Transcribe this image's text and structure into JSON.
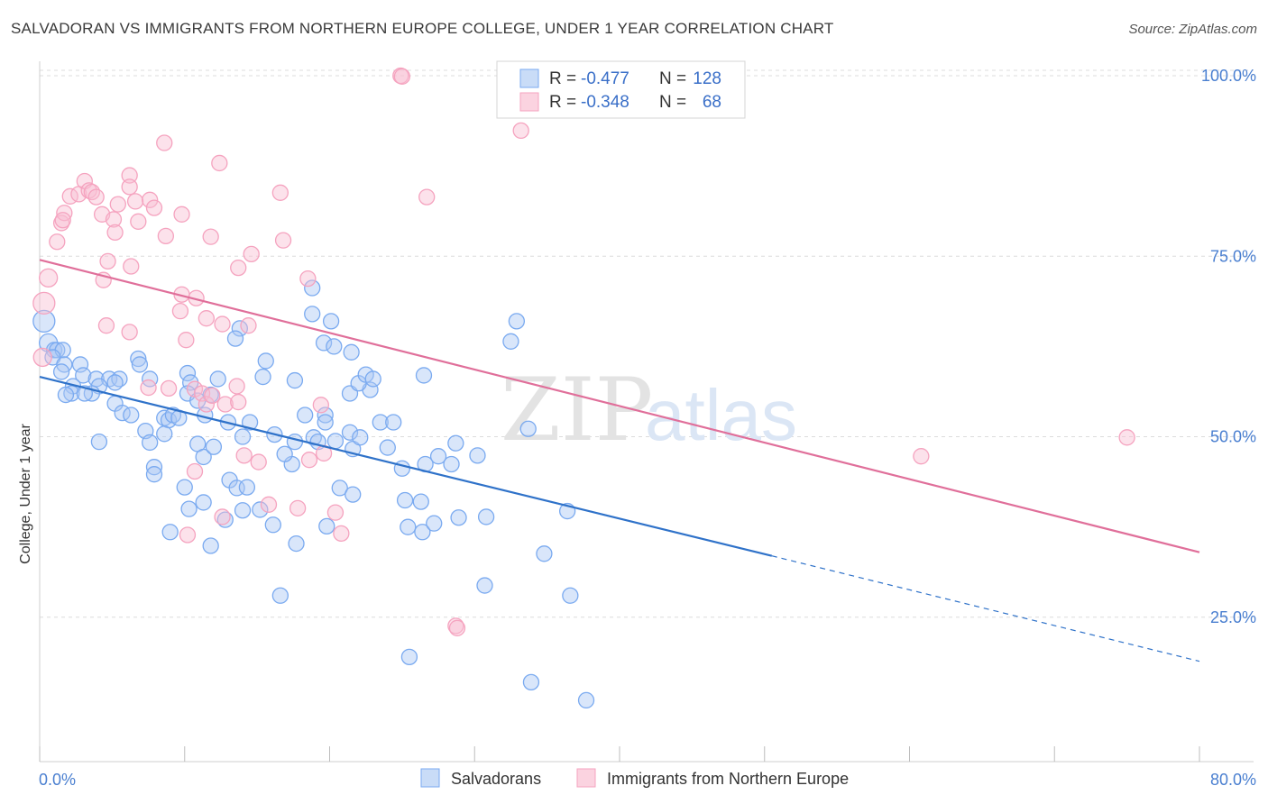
{
  "title": "SALVADORAN VS IMMIGRANTS FROM NORTHERN EUROPE COLLEGE, UNDER 1 YEAR CORRELATION CHART",
  "source": "Source: ZipAtlas.com",
  "watermark": {
    "zip": "ZIP",
    "atlas": "atlas"
  },
  "chart_data": {
    "type": "scatter",
    "xlabel": "",
    "ylabel": "College, Under 1 year",
    "xlim": [
      0,
      80
    ],
    "ylim": [
      5,
      102
    ],
    "x_tick_labels": [
      "0.0%",
      "80.0%"
    ],
    "y_ticks": [
      25,
      50,
      75,
      100
    ],
    "y_tick_labels": [
      "25.0%",
      "50.0%",
      "75.0%",
      "100.0%"
    ],
    "grid": true,
    "legend_position": "top-center",
    "legend": [
      {
        "r_label": "R = ",
        "r_value": "-0.477",
        "n_label": "N = ",
        "n_value": "128",
        "color": "#7aaaf0"
      },
      {
        "r_label": "R = ",
        "r_value": "-0.348",
        "n_label": "N = ",
        "n_value": "68",
        "color": "#f5a3bf"
      }
    ],
    "series": [
      {
        "name": "Salvadorans",
        "color": "#7aaaf0",
        "line_color": "#2f72c9",
        "trend": {
          "x0": 0,
          "y0": 58.3,
          "x1": 50.5,
          "y1": 33.5,
          "x_dash_end": 80,
          "y_dash_end": 18.9
        },
        "points": [
          [
            0.3,
            66
          ],
          [
            0.6,
            63
          ],
          [
            1,
            62
          ],
          [
            1.2,
            62
          ],
          [
            1.6,
            62
          ],
          [
            0.9,
            61
          ],
          [
            1.7,
            60
          ],
          [
            2.8,
            60
          ],
          [
            1.5,
            59
          ],
          [
            3,
            58.5
          ],
          [
            3.9,
            58
          ],
          [
            4.8,
            58
          ],
          [
            5.5,
            58
          ],
          [
            2.3,
            57
          ],
          [
            4.1,
            57
          ],
          [
            5.2,
            57.5
          ],
          [
            3.6,
            56
          ],
          [
            2.2,
            56
          ],
          [
            3.1,
            56
          ],
          [
            1.8,
            55.8
          ],
          [
            6.8,
            60.8
          ],
          [
            6.9,
            60
          ],
          [
            7.6,
            58
          ],
          [
            5.2,
            54.6
          ],
          [
            5.7,
            53.3
          ],
          [
            6.3,
            53
          ],
          [
            8.6,
            52.6
          ],
          [
            8.9,
            52.3
          ],
          [
            9.2,
            53
          ],
          [
            9.6,
            52.6
          ],
          [
            10.2,
            58.8
          ],
          [
            10.4,
            57.5
          ],
          [
            10.2,
            56
          ],
          [
            10.9,
            55
          ],
          [
            11.8,
            55.8
          ],
          [
            12.3,
            58
          ],
          [
            11.4,
            53
          ],
          [
            13,
            52
          ],
          [
            14,
            50
          ],
          [
            14.5,
            52
          ],
          [
            13.8,
            65
          ],
          [
            13.5,
            63.6
          ],
          [
            15.4,
            58.3
          ],
          [
            15.6,
            60.5
          ],
          [
            17.6,
            57.8
          ],
          [
            18.3,
            53
          ],
          [
            19.7,
            53
          ],
          [
            18.9,
            49.9
          ],
          [
            17.4,
            46.2
          ],
          [
            19.7,
            52
          ],
          [
            20.4,
            49.4
          ],
          [
            21.4,
            56
          ],
          [
            22.8,
            56.5
          ],
          [
            20.1,
            66
          ],
          [
            19.6,
            63
          ],
          [
            18.8,
            70.6
          ],
          [
            18.8,
            67
          ],
          [
            20.3,
            62.5
          ],
          [
            21.5,
            61.7
          ],
          [
            22,
            57.4
          ],
          [
            22.5,
            58.6
          ],
          [
            23,
            58
          ],
          [
            23.5,
            52
          ],
          [
            24,
            48.5
          ],
          [
            25,
            45.6
          ],
          [
            4.1,
            49.3
          ],
          [
            7.3,
            50.8
          ],
          [
            7.6,
            49.2
          ],
          [
            8.6,
            50.4
          ],
          [
            7.9,
            45.8
          ],
          [
            7.9,
            44.8
          ],
          [
            10.9,
            49
          ],
          [
            11.3,
            47.2
          ],
          [
            12,
            48.6
          ],
          [
            13.1,
            44
          ],
          [
            13.6,
            42.9
          ],
          [
            14.3,
            43
          ],
          [
            16.2,
            50.3
          ],
          [
            16.9,
            47.6
          ],
          [
            17.6,
            49.3
          ],
          [
            19.2,
            49.3
          ],
          [
            21.4,
            50.6
          ],
          [
            21.6,
            48.3
          ],
          [
            22.1,
            49.9
          ],
          [
            26.5,
            58.5
          ],
          [
            24.4,
            52
          ],
          [
            26.6,
            46.2
          ],
          [
            27.5,
            47.3
          ],
          [
            28.7,
            49.1
          ],
          [
            32.9,
            66
          ],
          [
            32.5,
            63.2
          ],
          [
            33.7,
            51.1
          ],
          [
            10,
            43
          ],
          [
            10.3,
            40
          ],
          [
            11.3,
            40.9
          ],
          [
            12.8,
            38.5
          ],
          [
            14,
            39.8
          ],
          [
            15.2,
            39.9
          ],
          [
            16.1,
            37.8
          ],
          [
            17.7,
            35.2
          ],
          [
            19.8,
            37.6
          ],
          [
            20.7,
            42.9
          ],
          [
            21.6,
            42
          ],
          [
            25.2,
            41.2
          ],
          [
            25.4,
            37.5
          ],
          [
            26.3,
            41
          ],
          [
            26.4,
            36.8
          ],
          [
            27.2,
            38
          ],
          [
            28.9,
            38.8
          ],
          [
            9,
            36.8
          ],
          [
            11.8,
            34.9
          ],
          [
            30.8,
            38.9
          ],
          [
            28.4,
            46.2
          ],
          [
            30.2,
            47.4
          ],
          [
            36.4,
            39.7
          ],
          [
            34.8,
            33.8
          ],
          [
            30.7,
            29.4
          ],
          [
            36.6,
            28
          ],
          [
            16.6,
            28
          ],
          [
            25.5,
            19.5
          ],
          [
            33.9,
            16
          ],
          [
            37.7,
            13.5
          ]
        ]
      },
      {
        "name": "Immigrants from Northern Europe",
        "color": "#f5a3bf",
        "line_color": "#e06f9a",
        "trend": {
          "x0": 0,
          "y0": 74.5,
          "x1": 80,
          "y1": 34
        },
        "points": [
          [
            0.3,
            68.5
          ],
          [
            0.6,
            72
          ],
          [
            0.2,
            61
          ],
          [
            1.2,
            77
          ],
          [
            1.5,
            79.6
          ],
          [
            1.7,
            81
          ],
          [
            1.6,
            80
          ],
          [
            2.1,
            83.3
          ],
          [
            2.7,
            83.6
          ],
          [
            3.1,
            85.4
          ],
          [
            3.4,
            84.1
          ],
          [
            3.6,
            83.9
          ],
          [
            3.9,
            83.2
          ],
          [
            4.3,
            80.8
          ],
          [
            5.1,
            80.1
          ],
          [
            5.2,
            78.3
          ],
          [
            4.7,
            74.3
          ],
          [
            4.4,
            71.7
          ],
          [
            6.2,
            86.2
          ],
          [
            6.2,
            84.6
          ],
          [
            6.6,
            82.6
          ],
          [
            6.8,
            79.8
          ],
          [
            7.6,
            82.8
          ],
          [
            7.9,
            81.7
          ],
          [
            8.6,
            90.7
          ],
          [
            8.7,
            77.8
          ],
          [
            9.8,
            80.8
          ],
          [
            6.3,
            73.6
          ],
          [
            9.8,
            69.7
          ],
          [
            9.7,
            67.4
          ],
          [
            10.8,
            69.2
          ],
          [
            11.8,
            77.7
          ],
          [
            12.4,
            87.9
          ],
          [
            13.7,
            73.4
          ],
          [
            14.6,
            75.3
          ],
          [
            14.4,
            65.4
          ],
          [
            11.5,
            66.4
          ],
          [
            10.1,
            63.4
          ],
          [
            10.7,
            56.6
          ],
          [
            11.2,
            56
          ],
          [
            11.5,
            54.5
          ],
          [
            11.9,
            55.7
          ],
          [
            12.8,
            54.5
          ],
          [
            12.6,
            65.6
          ],
          [
            13.6,
            57
          ],
          [
            14.1,
            47.4
          ],
          [
            10.7,
            45.2
          ],
          [
            12.6,
            38.9
          ],
          [
            13.7,
            54.8
          ],
          [
            15.1,
            46.5
          ],
          [
            15.8,
            40.6
          ],
          [
            18.5,
            71.9
          ],
          [
            16.8,
            77.2
          ],
          [
            16.6,
            83.8
          ],
          [
            17.8,
            40.1
          ],
          [
            18.6,
            46.8
          ],
          [
            19.4,
            54.4
          ],
          [
            19.6,
            47.7
          ],
          [
            20.4,
            39.5
          ],
          [
            20.8,
            36.6
          ],
          [
            10.2,
            36.4
          ],
          [
            4.6,
            65.4
          ],
          [
            5.4,
            82.2
          ],
          [
            6.2,
            64.5
          ],
          [
            7.5,
            56.8
          ],
          [
            8.9,
            56.7
          ],
          [
            24.9,
            100
          ],
          [
            25,
            99.9
          ],
          [
            26.7,
            83.2
          ],
          [
            33.2,
            92.4
          ],
          [
            28.7,
            23.8
          ],
          [
            28.8,
            23.5
          ],
          [
            60.8,
            47.3
          ],
          [
            75,
            49.9
          ]
        ]
      }
    ]
  },
  "bottom_legend": [
    {
      "label": "Salvadorans",
      "color": "#7aaaf0"
    },
    {
      "label": "Immigrants from Northern Europe",
      "color": "#f5a3bf"
    }
  ]
}
